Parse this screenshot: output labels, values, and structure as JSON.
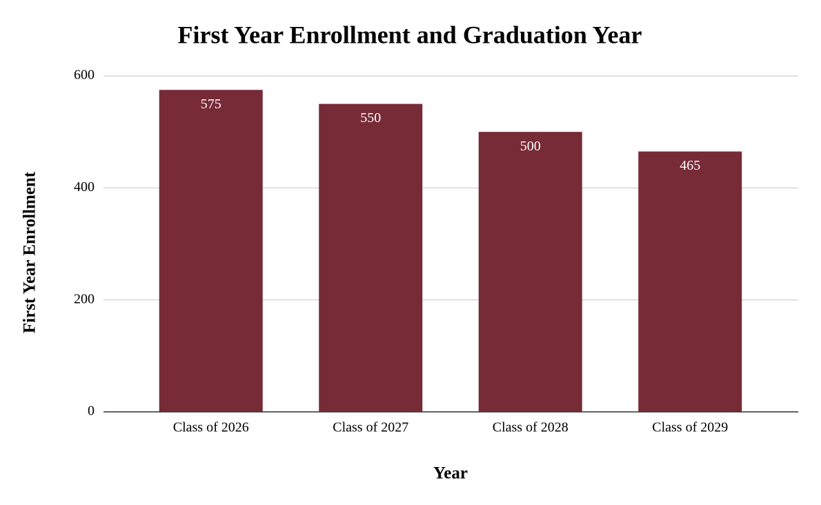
{
  "chart_data": {
    "type": "bar",
    "title": "First Year Enrollment and Graduation Year",
    "x_label": "Year",
    "y_label": "First Year Enrollment",
    "categories": [
      "Class of 2026",
      "Class of 2027",
      "Class of 2028",
      "Class of 2029"
    ],
    "values": [
      575,
      550,
      500,
      465
    ],
    "color": "#772b37",
    "ylim": [
      0,
      600
    ],
    "yticks": [
      0,
      200,
      400,
      600
    ],
    "grid": true
  }
}
